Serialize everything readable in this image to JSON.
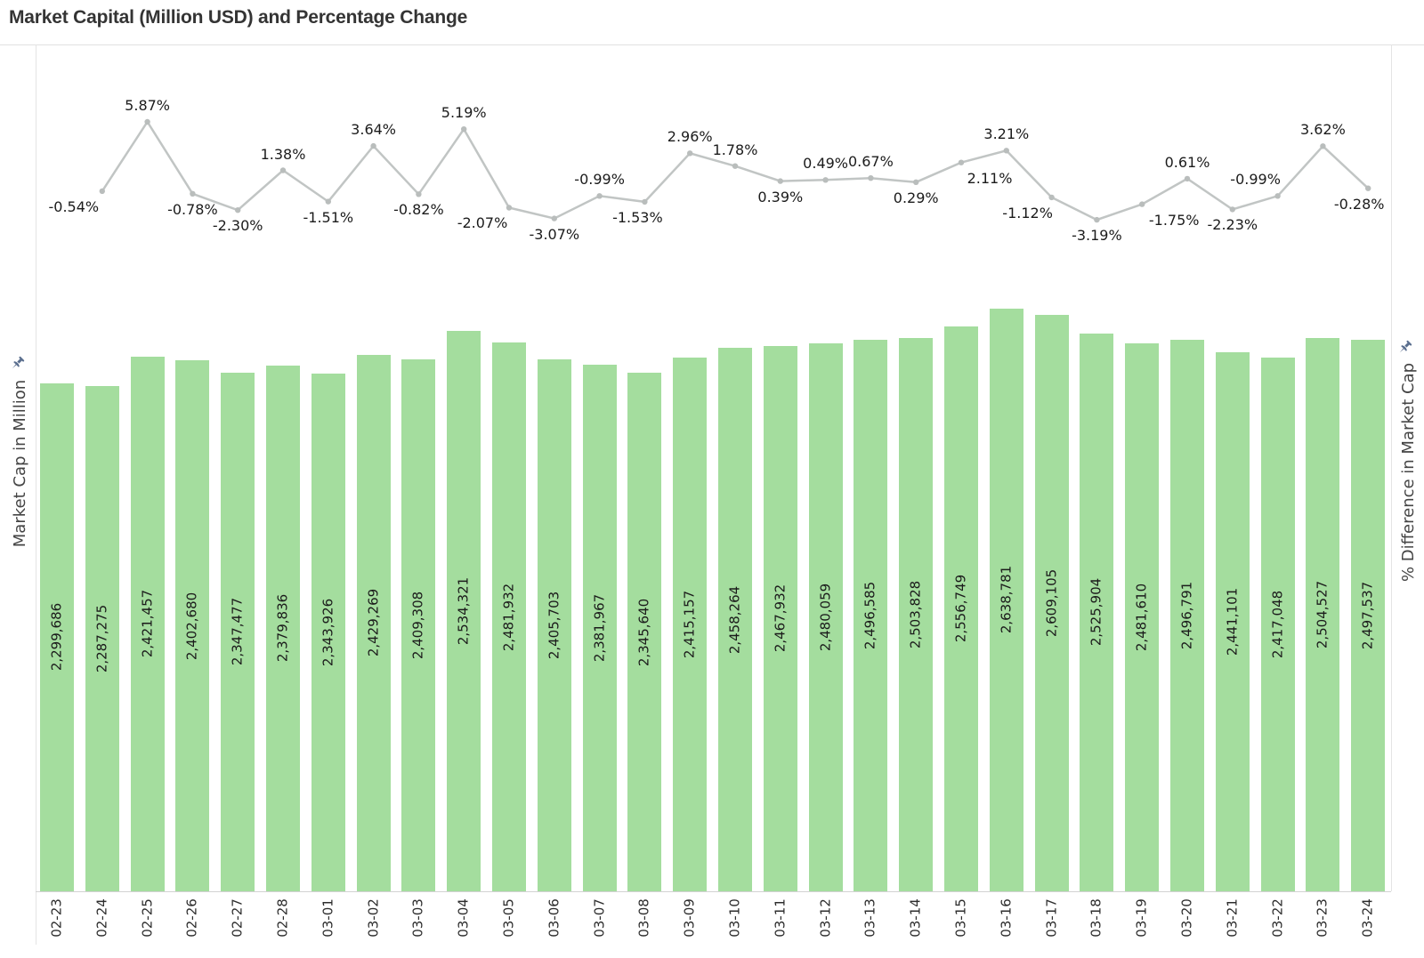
{
  "title": "Market Capital (Million USD) and Percentage Change",
  "left_axis": {
    "label": "Market Cap in Million",
    "icon": "pushpin-icon"
  },
  "right_axis": {
    "label": "% Difference in Market Cap",
    "icon": "pushpin-icon"
  },
  "colors": {
    "bar_fill": "#a4dd9e",
    "line_stroke": "#c1c5c4",
    "marker_fill": "#b9bdbc",
    "mark_label": "#1b1b1b",
    "axis_tick_label": "#2d2d2d",
    "axis_title": "#454545",
    "title_text": "#343434",
    "pin": "#5a6e8e",
    "grid_line": "#e4e4e4",
    "base_line": "#d2d2d2"
  },
  "chart_data": {
    "type": "combo",
    "subtypes": [
      "bar",
      "line"
    ],
    "title": "Market Capital (Million USD) and Percentage Change",
    "xlabel": "",
    "ylabel_left": "Market Cap in Million",
    "ylabel_right": "% Difference in Market Cap",
    "x_tick_rotation": -90,
    "grid": false,
    "legend": "none",
    "categories": [
      "02-23",
      "02-24",
      "02-25",
      "02-26",
      "02-27",
      "02-28",
      "03-01",
      "03-02",
      "03-03",
      "03-04",
      "03-05",
      "03-06",
      "03-07",
      "03-08",
      "03-09",
      "03-10",
      "03-11",
      "03-12",
      "03-13",
      "03-14",
      "03-15",
      "03-16",
      "03-17",
      "03-18",
      "03-19",
      "03-20",
      "03-21",
      "03-22",
      "03-23",
      "03-24"
    ],
    "series": [
      {
        "name": "Market Cap in Million",
        "type": "bar",
        "axis": "left",
        "ylim": [
          0,
          2700000
        ],
        "values": [
          2299686,
          2287275,
          2421457,
          2402680,
          2347477,
          2379836,
          2343926,
          2429269,
          2409308,
          2534321,
          2481932,
          2405703,
          2381967,
          2345640,
          2415157,
          2458264,
          2467932,
          2480059,
          2496585,
          2503828,
          2556749,
          2638781,
          2609105,
          2525904,
          2481610,
          2496791,
          2441101,
          2417048,
          2504527,
          2497537
        ],
        "labels": [
          "2,299,686",
          "2,287,275",
          "2,421,457",
          "2,402,680",
          "2,347,477",
          "2,379,836",
          "2,343,926",
          "2,429,269",
          "2,409,308",
          "2,534,321",
          "2,481,932",
          "2,405,703",
          "2,381,967",
          "2,345,640",
          "2,415,157",
          "2,458,264",
          "2,467,932",
          "2,480,059",
          "2,496,585",
          "2,503,828",
          "2,556,749",
          "2,638,781",
          "2,609,105",
          "2,525,904",
          "2,481,610",
          "2,496,791",
          "2,441,101",
          "2,417,048",
          "2,504,527",
          "2,497,537"
        ]
      },
      {
        "name": "% Difference in Market Cap",
        "type": "line",
        "axis": "right",
        "start_category": "02-24",
        "values": [
          -0.54,
          5.87,
          -0.78,
          -2.3,
          1.38,
          -1.51,
          3.64,
          -0.82,
          5.19,
          -2.07,
          -3.07,
          -0.99,
          -1.53,
          2.96,
          1.78,
          0.39,
          0.49,
          0.67,
          0.29,
          2.11,
          3.21,
          -1.12,
          -3.19,
          -1.75,
          0.61,
          -2.23,
          -0.99,
          3.62,
          -0.28
        ],
        "labels": [
          "-0.54%",
          "5.87%",
          "-0.78%",
          "-2.30%",
          "1.38%",
          "-1.51%",
          "3.64%",
          "-0.82%",
          "5.19%",
          "-2.07%",
          "-3.07%",
          "-0.99%",
          "-1.53%",
          "2.96%",
          "1.78%",
          "0.39%",
          "0.49%",
          "0.67%",
          "0.29%",
          "2.11%",
          "3.21%",
          "-1.12%",
          "-3.19%",
          "-1.75%",
          "0.61%",
          "-2.23%",
          "-0.99%",
          "3.62%",
          "-0.28%"
        ],
        "label_positions": [
          "below",
          "above",
          "below",
          "below",
          "above",
          "below",
          "above",
          "below",
          "above",
          "below",
          "below",
          "above",
          "below",
          "above",
          "above",
          "below",
          "above",
          "above",
          "below",
          "below",
          "above",
          "below",
          "below",
          "below",
          "above",
          "below",
          "above",
          "above",
          "below"
        ],
        "label_dx": [
          -32,
          0,
          0,
          0,
          0,
          0,
          0,
          0,
          0,
          -30,
          0,
          0,
          -8,
          0,
          0,
          0,
          0,
          0,
          0,
          32,
          0,
          -27,
          0,
          36,
          0,
          0,
          -25,
          0,
          -10
        ]
      }
    ]
  }
}
